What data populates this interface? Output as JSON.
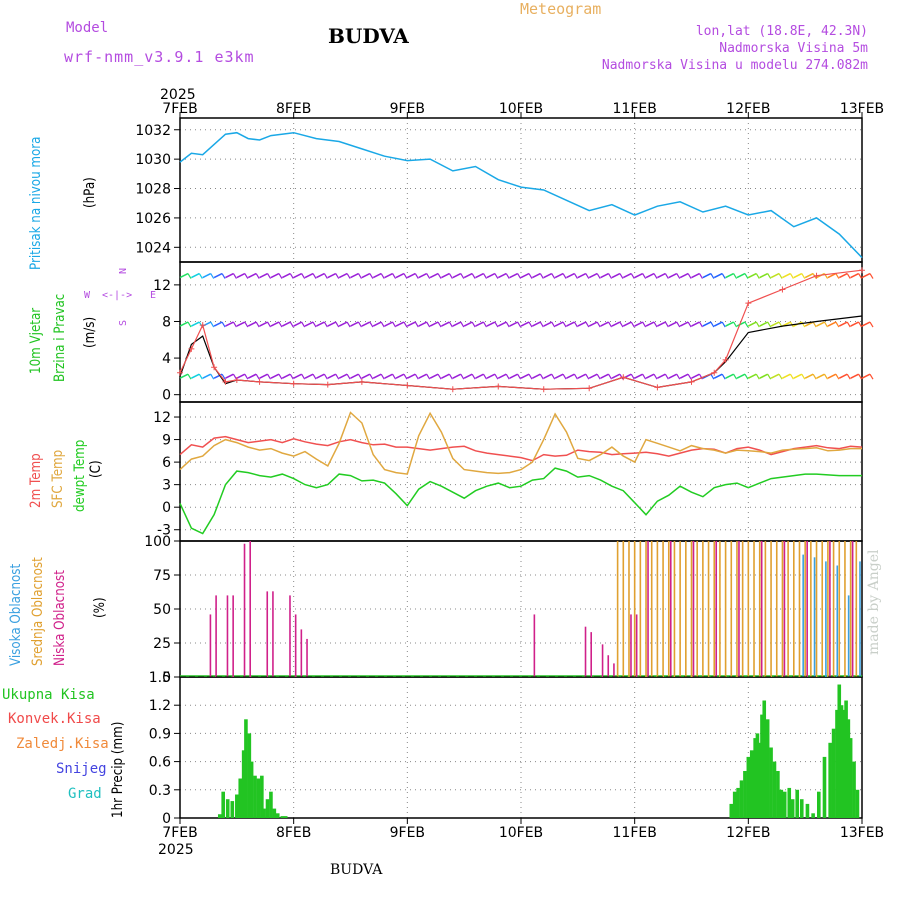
{
  "header": {
    "model_label": "Model",
    "model_name": "wrf-nmm_v3.9.1 e3km",
    "title": "BUDVA",
    "meteogram_label": "Meteogram",
    "coords": "lon,lat (18.8E, 42.3N)",
    "elevation": "Nadmorska Visina 5m",
    "model_elevation": "Nadmorska Visina u modelu 274.082m"
  },
  "footer": {
    "station": "BUDVA",
    "credit": "made by Angel"
  },
  "colors": {
    "pressure": "#1aa8e6",
    "wind_green": "#22c422",
    "temp2m": "#f05050",
    "sfc": "#e0a840",
    "dew": "#22cc22",
    "high_cloud": "#3aa0e0",
    "mid_cloud": "#e0a030",
    "low_cloud": "#d0208a",
    "total_precip": "#22c422",
    "conv": "#f04a4a",
    "frozen": "#f08a3a",
    "snow": "#4444e0",
    "hail": "#20c0c0",
    "purple": "#b44ce0"
  },
  "chart_data": [
    {
      "type": "line",
      "panel": "pressure",
      "title": "Pritisak na nivou mora",
      "ylabel": "(hPa)",
      "ylim": [
        1023,
        1032.8
      ],
      "yticks": [
        1024,
        1026,
        1028,
        1030,
        1032
      ],
      "x_days": [
        0,
        0.1,
        0.2,
        0.3,
        0.4,
        0.5,
        0.6,
        0.7,
        0.8,
        1.0,
        1.2,
        1.4,
        1.6,
        1.8,
        2.0,
        2.2,
        2.4,
        2.6,
        2.8,
        3.0,
        3.2,
        3.4,
        3.6,
        3.8,
        4.0,
        4.2,
        4.4,
        4.6,
        4.8,
        5.0,
        5.2,
        5.4,
        5.6,
        5.8,
        6.0
      ],
      "values": [
        1029.8,
        1030.4,
        1030.3,
        1031.0,
        1031.7,
        1031.8,
        1031.4,
        1031.3,
        1031.6,
        1031.8,
        1031.4,
        1031.2,
        1030.7,
        1030.2,
        1029.9,
        1030.0,
        1029.2,
        1029.5,
        1028.6,
        1028.1,
        1027.9,
        1027.2,
        1026.5,
        1026.9,
        1026.2,
        1026.8,
        1027.1,
        1026.4,
        1026.8,
        1026.2,
        1026.5,
        1025.4,
        1026.0,
        1024.9,
        1023.3
      ]
    },
    {
      "type": "line",
      "panel": "wind",
      "title": "10m Vjetar Brzina i Pravac",
      "ylabel": "(m/s)",
      "ylim": [
        -0.8,
        14.5
      ],
      "yticks": [
        0,
        4,
        8,
        12
      ],
      "compass": [
        "W",
        "E",
        "N",
        "S"
      ],
      "x_days": [
        0,
        0.1,
        0.2,
        0.3,
        0.4,
        0.5,
        0.7,
        1.0,
        1.3,
        1.6,
        2.0,
        2.4,
        2.8,
        3.2,
        3.6,
        3.9,
        4.2,
        4.5,
        4.7,
        4.8,
        5.0,
        5.3,
        5.6,
        6.0
      ],
      "series": [
        {
          "name": "wind speed",
          "values": [
            2.4,
            5.0,
            7.6,
            3.0,
            1.4,
            1.6,
            1.4,
            1.2,
            1.1,
            1.4,
            1.0,
            0.6,
            0.9,
            0.6,
            0.7,
            1.9,
            0.8,
            1.4,
            2.4,
            3.8,
            10.0,
            11.5,
            13.0,
            13.6
          ]
        },
        {
          "name": "gust",
          "values": [
            2.0,
            5.5,
            6.4,
            3.0,
            1.2,
            1.6,
            1.4,
            1.2,
            1.1,
            1.4,
            1.0,
            0.6,
            0.9,
            0.6,
            0.7,
            1.9,
            0.8,
            1.4,
            2.4,
            3.6,
            6.8,
            7.5,
            8.0,
            8.6
          ]
        }
      ]
    },
    {
      "type": "line",
      "panel": "temperature",
      "ylabel": "(C)",
      "ylim": [
        -4.5,
        14
      ],
      "yticks": [
        -3,
        0,
        3,
        6,
        9,
        12
      ],
      "x_days": [
        0,
        0.1,
        0.2,
        0.3,
        0.4,
        0.5,
        0.6,
        0.7,
        0.8,
        0.9,
        1.0,
        1.1,
        1.2,
        1.3,
        1.4,
        1.5,
        1.6,
        1.7,
        1.8,
        1.9,
        2.0,
        2.1,
        2.2,
        2.3,
        2.4,
        2.5,
        2.6,
        2.7,
        2.8,
        2.9,
        3.0,
        3.1,
        3.2,
        3.3,
        3.4,
        3.5,
        3.6,
        3.7,
        3.8,
        3.9,
        4.0,
        4.1,
        4.2,
        4.3,
        4.4,
        4.5,
        4.6,
        4.7,
        4.8,
        4.9,
        5.0,
        5.1,
        5.2,
        5.3,
        5.4,
        5.5,
        5.6,
        5.7,
        5.8,
        5.9,
        6.0
      ],
      "series": [
        {
          "name": "2m Temp",
          "values": [
            7.0,
            8.3,
            8.0,
            9.2,
            9.4,
            9.0,
            8.6,
            8.8,
            9.0,
            8.6,
            9.1,
            8.7,
            8.4,
            8.2,
            8.7,
            9.0,
            8.6,
            8.3,
            8.4,
            8.0,
            8.0,
            7.8,
            7.6,
            7.8,
            8.0,
            8.1,
            7.5,
            7.2,
            7.0,
            6.8,
            6.6,
            6.2,
            7.0,
            6.8,
            6.9,
            7.6,
            7.4,
            7.3,
            7.0,
            7.1,
            7.2,
            7.3,
            7.1,
            6.8,
            7.2,
            7.6,
            7.8,
            7.7,
            7.2,
            7.8,
            8.0,
            7.6,
            7.0,
            7.4,
            7.8,
            8.0,
            8.2,
            7.9,
            7.8,
            8.1,
            8.0
          ]
        },
        {
          "name": "SFC Temp",
          "values": [
            5.0,
            6.4,
            6.8,
            8.2,
            9.0,
            8.6,
            8.0,
            7.6,
            7.8,
            7.2,
            6.8,
            7.4,
            6.4,
            5.5,
            8.5,
            12.6,
            11.2,
            7.0,
            5.0,
            4.6,
            4.4,
            9.5,
            12.5,
            10.0,
            6.5,
            5.0,
            4.8,
            4.6,
            4.5,
            4.6,
            5.0,
            6.0,
            9.0,
            12.4,
            10.0,
            6.5,
            6.2,
            7.0,
            8.0,
            6.8,
            6.0,
            9.0,
            8.5,
            8.0,
            7.5,
            8.2,
            7.8,
            7.6,
            7.2,
            7.6,
            7.5,
            7.4,
            7.2,
            7.6,
            7.7,
            7.8,
            7.9,
            7.5,
            7.6,
            7.8,
            7.8
          ]
        },
        {
          "name": "dewpt Temp",
          "values": [
            0.5,
            -2.8,
            -3.5,
            -1.0,
            3.0,
            4.8,
            4.6,
            4.2,
            4.0,
            4.4,
            3.8,
            3.0,
            2.6,
            3.0,
            4.4,
            4.2,
            3.5,
            3.6,
            3.2,
            1.8,
            0.2,
            2.4,
            3.4,
            2.8,
            2.0,
            1.2,
            2.2,
            2.8,
            3.2,
            2.6,
            2.8,
            3.6,
            3.8,
            5.2,
            4.8,
            4.0,
            4.2,
            3.6,
            2.8,
            2.2,
            0.6,
            -1.0,
            0.8,
            1.6,
            2.8,
            2.0,
            1.4,
            2.6,
            3.0,
            3.2,
            2.6,
            3.2,
            3.8,
            4.0,
            4.2,
            4.4,
            4.4,
            4.3,
            4.2,
            4.2,
            4.2
          ]
        }
      ]
    },
    {
      "type": "bar",
      "panel": "clouds",
      "ylabel": "(%)",
      "ylim": [
        0,
        100
      ],
      "yticks": [
        0,
        25,
        50,
        75,
        100
      ],
      "series": [
        {
          "name": "Visoka Oblacnost",
          "x_days": [
            5.5,
            5.6,
            5.7,
            5.8,
            5.9,
            6.0
          ],
          "values": [
            90,
            88,
            85,
            82,
            60,
            85
          ]
        },
        {
          "name": "Srednja Oblacnost",
          "x_days": [
            3.85,
            3.9,
            3.95,
            4.0,
            4.05,
            4.1,
            4.15,
            4.2,
            4.25,
            4.3,
            4.35,
            4.4,
            4.45,
            4.5,
            4.55,
            4.6,
            4.65,
            4.7,
            4.75,
            4.8,
            4.85,
            4.9,
            4.95,
            5.0,
            5.05,
            5.1,
            5.15,
            5.2,
            5.25,
            5.3,
            5.35,
            5.4,
            5.45,
            5.5,
            5.55,
            5.6,
            5.65,
            5.7,
            5.75,
            5.8,
            5.85,
            5.9,
            5.95
          ],
          "values": [
            100,
            100,
            100,
            100,
            100,
            100,
            100,
            100,
            100,
            100,
            100,
            100,
            100,
            100,
            100,
            100,
            100,
            100,
            100,
            100,
            100,
            100,
            100,
            100,
            100,
            100,
            100,
            100,
            100,
            100,
            100,
            100,
            100,
            100,
            100,
            100,
            100,
            100,
            100,
            100,
            100,
            100,
            100
          ]
        },
        {
          "name": "Niska Oblacnost",
          "x_days": [
            0.25,
            0.3,
            0.4,
            0.45,
            0.55,
            0.6,
            0.75,
            0.8,
            0.95,
            1.0,
            1.05,
            1.1,
            3.1,
            3.55,
            3.6,
            3.7,
            3.75,
            3.8,
            3.95,
            4.0,
            4.1,
            4.3,
            4.5,
            4.7,
            4.9,
            5.1,
            5.3,
            5.5,
            5.7,
            5.9
          ],
          "values": [
            46,
            60,
            60,
            60,
            98,
            100,
            63,
            63,
            60,
            46,
            35,
            28,
            46,
            37,
            33,
            24,
            16,
            10,
            46,
            46,
            100,
            100,
            100,
            100,
            100,
            100,
            100,
            100,
            100,
            100
          ]
        }
      ]
    },
    {
      "type": "bar",
      "panel": "precipitation",
      "ylabel": "1hr Precip (mm)",
      "ylim": [
        0,
        1.5
      ],
      "yticks": [
        0,
        0.3,
        0.6,
        0.9,
        1.2,
        1.5
      ],
      "legend": [
        "Ukupna Kisa",
        "Konvek.Kisa",
        "Zaledj.Kisa",
        "Snijeg",
        "Grad"
      ],
      "x_days": [
        0.35,
        0.38,
        0.42,
        0.46,
        0.5,
        0.53,
        0.56,
        0.58,
        0.61,
        0.63,
        0.66,
        0.69,
        0.72,
        0.74,
        0.77,
        0.8,
        0.83,
        0.86,
        0.9,
        0.93,
        4.85,
        4.88,
        4.91,
        4.94,
        4.97,
        5.0,
        5.03,
        5.06,
        5.08,
        5.1,
        5.12,
        5.14,
        5.17,
        5.2,
        5.23,
        5.26,
        5.29,
        5.32,
        5.36,
        5.39,
        5.43,
        5.47,
        5.52,
        5.57,
        5.62,
        5.67,
        5.72,
        5.75,
        5.78,
        5.8,
        5.82,
        5.84,
        5.86,
        5.88,
        5.9,
        5.93,
        5.96
      ],
      "values": [
        0.04,
        0.28,
        0.2,
        0.18,
        0.25,
        0.42,
        0.72,
        1.05,
        0.9,
        0.6,
        0.45,
        0.42,
        0.45,
        0.1,
        0.2,
        0.28,
        0.1,
        0.05,
        0.02,
        0.02,
        0.15,
        0.28,
        0.32,
        0.4,
        0.5,
        0.65,
        0.72,
        0.85,
        0.9,
        0.8,
        1.1,
        1.25,
        1.05,
        0.75,
        0.6,
        0.5,
        0.3,
        0.28,
        0.32,
        0.2,
        0.3,
        0.2,
        0.15,
        0.05,
        0.28,
        0.65,
        0.8,
        0.95,
        1.15,
        1.42,
        1.2,
        1.15,
        1.25,
        1.05,
        0.85,
        0.6,
        0.3
      ]
    }
  ],
  "x_axis": {
    "days": [
      "7FEB",
      "8FEB",
      "9FEB",
      "10FEB",
      "11FEB",
      "12FEB",
      "13FEB"
    ],
    "year": "2025"
  },
  "labels": {
    "pressure_title": "Pritisak na nivou mora",
    "pressure_unit": "(hPa)",
    "wind_title1": "10m Vjetar",
    "wind_title2": "Brzina i Pravac",
    "wind_unit": "(m/s)",
    "temp1": "2m Temp",
    "temp2": "SFC Temp",
    "temp3": "dewpt Temp",
    "temp_unit": "(C)",
    "cloud1": "Visoka Oblacnost",
    "cloud2": "Srednja Oblacnost",
    "cloud3": "Niska Oblacnost",
    "cloud_unit": "(%)",
    "precip_unit": "1hr Precip (mm)",
    "precip_legend": [
      "Ukupna Kisa",
      "Konvek.Kisa",
      "Zaledj.Kisa",
      "Snijeg",
      "Grad"
    ],
    "compass_w": "W",
    "compass_e": "E",
    "compass_n": "N",
    "compass_s": "S"
  }
}
